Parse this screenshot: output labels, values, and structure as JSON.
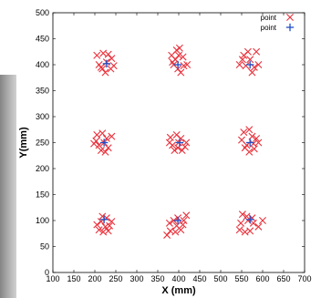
{
  "chart_data": {
    "type": "scatter",
    "title": "",
    "xlabel": "X (mm)",
    "ylabel": "Y(mm)",
    "xlim": [
      100,
      700
    ],
    "ylim": [
      0,
      500
    ],
    "xticks": [
      100,
      150,
      200,
      250,
      300,
      350,
      400,
      450,
      500,
      550,
      600,
      650,
      700
    ],
    "yticks": [
      0,
      50,
      100,
      150,
      200,
      250,
      300,
      350,
      400,
      450,
      500
    ],
    "grid": false,
    "legend_position": "top-right",
    "series": [
      {
        "name": "point",
        "marker": "x",
        "color": "#e8323c",
        "points": [
          [
            205,
            418
          ],
          [
            220,
            422
          ],
          [
            228,
            405
          ],
          [
            215,
            395
          ],
          [
            240,
            412
          ],
          [
            245,
            398
          ],
          [
            210,
            400
          ],
          [
            225,
            385
          ],
          [
            232,
            420
          ],
          [
            218,
            392
          ],
          [
            238,
            392
          ],
          [
            383,
            418
          ],
          [
            395,
            428
          ],
          [
            402,
            432
          ],
          [
            410,
            415
          ],
          [
            388,
            400
          ],
          [
            398,
            392
          ],
          [
            412,
            398
          ],
          [
            405,
            385
          ],
          [
            420,
            400
          ],
          [
            392,
            410
          ],
          [
            400,
            418
          ],
          [
            385,
            405
          ],
          [
            555,
            418
          ],
          [
            570,
            410
          ],
          [
            585,
            425
          ],
          [
            545,
            400
          ],
          [
            560,
            398
          ],
          [
            575,
            385
          ],
          [
            590,
            400
          ],
          [
            565,
            425
          ],
          [
            580,
            395
          ],
          [
            552,
            410
          ],
          [
            205,
            265
          ],
          [
            218,
            268
          ],
          [
            228,
            258
          ],
          [
            240,
            262
          ],
          [
            210,
            245
          ],
          [
            222,
            250
          ],
          [
            198,
            248
          ],
          [
            232,
            240
          ],
          [
            215,
            235
          ],
          [
            225,
            232
          ],
          [
            203,
            253
          ],
          [
            380,
            260
          ],
          [
            395,
            265
          ],
          [
            405,
            258
          ],
          [
            418,
            250
          ],
          [
            385,
            245
          ],
          [
            398,
            240
          ],
          [
            408,
            235
          ],
          [
            390,
            235
          ],
          [
            415,
            242
          ],
          [
            378,
            250
          ],
          [
            400,
            250
          ],
          [
            555,
            270
          ],
          [
            568,
            275
          ],
          [
            575,
            262
          ],
          [
            585,
            258
          ],
          [
            550,
            255
          ],
          [
            562,
            245
          ],
          [
            578,
            248
          ],
          [
            590,
            250
          ],
          [
            568,
            232
          ],
          [
            558,
            240
          ],
          [
            580,
            238
          ],
          [
            205,
            92
          ],
          [
            215,
            98
          ],
          [
            228,
            105
          ],
          [
            235,
            90
          ],
          [
            210,
            82
          ],
          [
            220,
            78
          ],
          [
            232,
            80
          ],
          [
            240,
            98
          ],
          [
            218,
            108
          ],
          [
            225,
            88
          ],
          [
            378,
            95
          ],
          [
            388,
            100
          ],
          [
            398,
            105
          ],
          [
            410,
            92
          ],
          [
            380,
            80
          ],
          [
            392,
            78
          ],
          [
            405,
            82
          ],
          [
            418,
            110
          ],
          [
            372,
            72
          ],
          [
            395,
            90
          ],
          [
            412,
            100
          ],
          [
            552,
            112
          ],
          [
            565,
            100
          ],
          [
            578,
            95
          ],
          [
            590,
            88
          ],
          [
            545,
            82
          ],
          [
            558,
            78
          ],
          [
            570,
            80
          ],
          [
            600,
            100
          ],
          [
            562,
            108
          ],
          [
            575,
            105
          ],
          [
            548,
            95
          ]
        ]
      },
      {
        "name": "point",
        "marker": "+",
        "color": "#1f4fc6",
        "points": [
          [
            228,
            402
          ],
          [
            398,
            400
          ],
          [
            570,
            400
          ],
          [
            222,
            250
          ],
          [
            402,
            250
          ],
          [
            570,
            250
          ],
          [
            222,
            102
          ],
          [
            398,
            100
          ],
          [
            570,
            102
          ]
        ]
      }
    ]
  }
}
